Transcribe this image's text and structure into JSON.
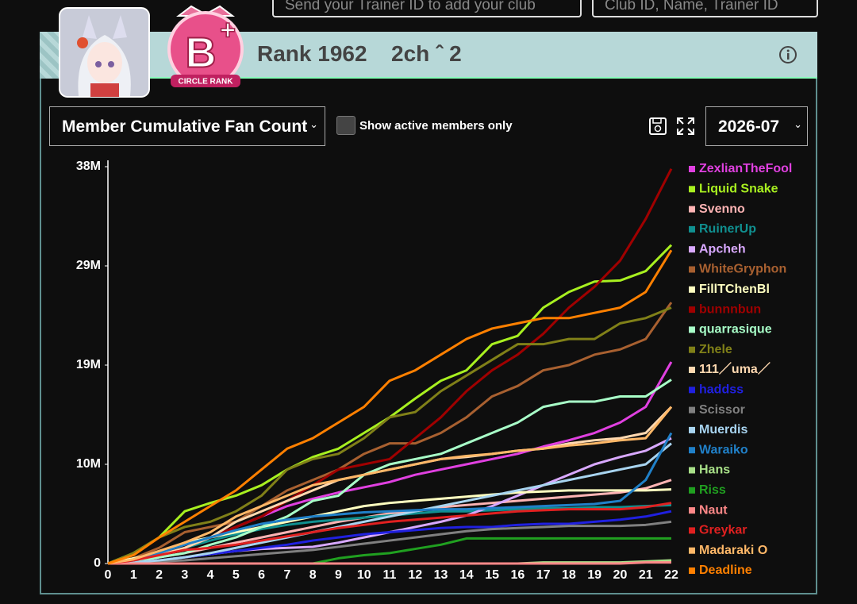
{
  "search": {
    "trainer_placeholder": "Send your Trainer ID to add your club",
    "club_placeholder": "Club ID, Name, Trainer ID"
  },
  "header": {
    "badge": "CIRCLE RANK",
    "rank": "Rank 1962",
    "club_name": "2ch ˆ 2"
  },
  "controls": {
    "metric": "Member Cumulative Fan Count",
    "active_only": "Show active members only",
    "month": "2026-07"
  },
  "chart_data": {
    "type": "line",
    "x": [
      0,
      1,
      2,
      3,
      4,
      5,
      6,
      7,
      8,
      9,
      10,
      11,
      12,
      13,
      14,
      15,
      16,
      17,
      18,
      19,
      20,
      21,
      22
    ],
    "xlim": [
      0,
      22
    ],
    "ylim": [
      0,
      38
    ],
    "yticks": [
      {
        "value": 0,
        "label": "0"
      },
      {
        "value": 9.5,
        "label": "10M"
      },
      {
        "value": 19,
        "label": "19M"
      },
      {
        "value": 28.5,
        "label": "29M"
      },
      {
        "value": 38,
        "label": "38M"
      }
    ],
    "series": [
      {
        "name": "ZexlianTheFool",
        "color": "#e040e0",
        "values": [
          0,
          0.3,
          0.8,
          1.5,
          2.5,
          3.5,
          4.5,
          5.5,
          6.2,
          6.8,
          7.3,
          7.8,
          8.5,
          9.0,
          9.5,
          10.0,
          10.5,
          11.2,
          11.8,
          12.5,
          13.5,
          15.0,
          19.3
        ]
      },
      {
        "name": "Liquid Snake",
        "color": "#a8f020",
        "values": [
          0,
          1.0,
          2.5,
          5.0,
          5.8,
          6.5,
          7.5,
          9.0,
          10.2,
          11.0,
          12.5,
          14.0,
          15.8,
          17.5,
          18.5,
          21.0,
          21.8,
          24.5,
          26.0,
          27.0,
          27.1,
          28.0,
          30.5
        ]
      },
      {
        "name": "Svenno",
        "color": "#ffb4b4",
        "values": [
          0,
          0.2,
          0.6,
          1.0,
          1.5,
          2.0,
          2.5,
          3.0,
          3.5,
          4.0,
          4.4,
          4.8,
          5.0,
          5.4,
          5.6,
          5.8,
          6.0,
          6.2,
          6.4,
          6.6,
          6.8,
          7.2,
          8.0
        ]
      },
      {
        "name": "RuinerUp",
        "color": "#109090",
        "values": [
          0,
          0.3,
          0.8,
          1.5,
          2.2,
          2.8,
          3.3,
          3.7,
          4.0,
          4.2,
          4.4,
          4.6,
          4.8,
          5.0,
          5.0,
          5.1,
          5.2,
          5.3,
          5.3,
          5.4,
          5.4,
          5.5,
          5.6
        ]
      },
      {
        "name": "Apcheh",
        "color": "#d8a8ff",
        "values": [
          0,
          0.1,
          0.3,
          0.6,
          0.9,
          1.2,
          1.4,
          1.5,
          1.6,
          2.0,
          2.5,
          3.0,
          3.5,
          4.0,
          4.6,
          5.5,
          6.5,
          7.5,
          8.5,
          9.5,
          10.2,
          10.8,
          12.0
        ]
      },
      {
        "name": "WhiteGryphon",
        "color": "#a86030",
        "values": [
          0,
          0.5,
          1.5,
          3.0,
          3.5,
          4.0,
          5.5,
          7.0,
          8.0,
          9.0,
          10.5,
          11.5,
          11.5,
          12.5,
          14.0,
          16.0,
          17.0,
          18.5,
          19.0,
          20.0,
          20.5,
          21.5,
          25.0
        ]
      },
      {
        "name": "FillTChenBl",
        "color": "#ffffc0",
        "values": [
          0,
          0.5,
          1.0,
          2.0,
          2.5,
          3.0,
          3.5,
          4.0,
          4.5,
          5.0,
          5.5,
          5.8,
          6.0,
          6.2,
          6.4,
          6.6,
          6.8,
          6.9,
          7.0,
          7.0,
          7.0,
          7.0,
          7.1
        ]
      },
      {
        "name": "bunnnbun",
        "color": "#a00000",
        "values": [
          0,
          0.3,
          0.8,
          1.5,
          2.5,
          3.5,
          4.5,
          6.0,
          7.5,
          9.0,
          9.5,
          10.0,
          12.0,
          14.0,
          16.5,
          18.5,
          20.0,
          22.0,
          24.5,
          26.5,
          29.0,
          33.0,
          37.8
        ]
      },
      {
        "name": "quarrasique",
        "color": "#a8ffc8",
        "values": [
          0,
          0.2,
          0.6,
          1.0,
          1.8,
          2.5,
          3.5,
          4.5,
          6.0,
          6.5,
          8.5,
          9.5,
          10.0,
          10.5,
          11.5,
          12.5,
          13.5,
          15.0,
          15.5,
          15.5,
          16.0,
          16.0,
          17.6
        ]
      },
      {
        "name": "Zhele",
        "color": "#808018",
        "values": [
          0,
          1.0,
          2.5,
          3.5,
          4.0,
          5.0,
          6.5,
          9.0,
          10.0,
          10.5,
          12.0,
          14.0,
          14.5,
          16.5,
          18.0,
          19.5,
          21.0,
          21.0,
          21.5,
          21.5,
          23.0,
          23.5,
          24.5
        ]
      },
      {
        "name": "111／uma／",
        "color": "#ffd8b0",
        "values": [
          0,
          0.3,
          0.8,
          1.5,
          2.5,
          4.0,
          5.0,
          6.0,
          7.0,
          8.0,
          8.5,
          9.0,
          9.5,
          10.0,
          10.2,
          10.5,
          10.8,
          11.0,
          11.5,
          11.8,
          12.0,
          12.5,
          15.0
        ]
      },
      {
        "name": "haddss",
        "color": "#2020e0",
        "values": [
          0,
          0.1,
          0.3,
          0.6,
          0.9,
          1.2,
          1.5,
          1.8,
          2.2,
          2.5,
          2.8,
          3.0,
          3.2,
          3.4,
          3.5,
          3.5,
          3.7,
          3.8,
          3.8,
          4.0,
          4.2,
          4.5,
          5.0
        ]
      },
      {
        "name": "Scissor",
        "color": "#808080",
        "values": [
          0,
          0.1,
          0.2,
          0.3,
          0.5,
          0.7,
          0.9,
          1.1,
          1.3,
          1.6,
          1.9,
          2.2,
          2.5,
          2.8,
          3.1,
          3.3,
          3.4,
          3.5,
          3.6,
          3.6,
          3.6,
          3.7,
          4.0
        ]
      },
      {
        "name": "Muerdis",
        "color": "#a8d4f0",
        "values": [
          0,
          0.1,
          0.3,
          0.6,
          1.0,
          1.5,
          2.0,
          2.5,
          3.0,
          3.5,
          4.0,
          4.5,
          5.0,
          5.5,
          6.0,
          6.5,
          7.0,
          7.5,
          8.0,
          8.5,
          9.0,
          9.5,
          11.5
        ]
      },
      {
        "name": "Waraiko",
        "color": "#2080c8",
        "values": [
          0,
          0.3,
          1.0,
          1.8,
          2.5,
          3.2,
          3.8,
          4.2,
          4.5,
          4.7,
          4.9,
          5.0,
          5.1,
          5.2,
          5.2,
          5.3,
          5.4,
          5.5,
          5.6,
          5.7,
          6.0,
          8.0,
          12.5
        ]
      },
      {
        "name": "Hans",
        "color": "#a8e088",
        "values": [
          0,
          0,
          0,
          0,
          0,
          0,
          0,
          0,
          0,
          0,
          0,
          0,
          0,
          0,
          0,
          0,
          0,
          0.1,
          0.1,
          0.1,
          0.1,
          0.2,
          0.3
        ]
      },
      {
        "name": "Riss",
        "color": "#20a020",
        "values": [
          0,
          0,
          0,
          0,
          0,
          0,
          0,
          0,
          0,
          0.5,
          0.8,
          1.0,
          1.4,
          1.8,
          2.4,
          2.4,
          2.4,
          2.4,
          2.4,
          2.4,
          2.4,
          2.4,
          2.4
        ]
      },
      {
        "name": "Naut",
        "color": "#ff8888",
        "values": [
          0,
          0,
          0,
          0,
          0,
          0,
          0,
          0,
          0,
          0,
          0,
          0,
          0,
          0,
          0,
          0,
          0,
          0,
          0,
          0,
          0,
          0.1,
          0.1
        ]
      },
      {
        "name": "Greykar",
        "color": "#e02020",
        "values": [
          0,
          0.3,
          0.8,
          1.3,
          1.5,
          1.8,
          2.2,
          2.6,
          3.0,
          3.4,
          3.7,
          4.0,
          4.2,
          4.4,
          4.6,
          4.8,
          5.0,
          5.1,
          5.2,
          5.2,
          5.2,
          5.4,
          5.8
        ]
      },
      {
        "name": "Madaraki O",
        "color": "#ffb868",
        "values": [
          0,
          0.4,
          1.2,
          2.0,
          3.0,
          4.5,
          5.5,
          6.5,
          7.5,
          8.0,
          8.5,
          9.0,
          9.5,
          10.0,
          10.3,
          10.5,
          10.8,
          11.0,
          11.3,
          11.5,
          11.8,
          12.0,
          15.0
        ]
      },
      {
        "name": "Deadline",
        "color": "#ff8000",
        "values": [
          0,
          0.8,
          2.5,
          4.0,
          5.5,
          7.0,
          9.0,
          11.0,
          12.0,
          13.5,
          15.0,
          17.5,
          18.5,
          20.0,
          21.5,
          22.5,
          23.0,
          23.5,
          23.5,
          24.0,
          24.5,
          26.0,
          30.0
        ]
      }
    ]
  }
}
